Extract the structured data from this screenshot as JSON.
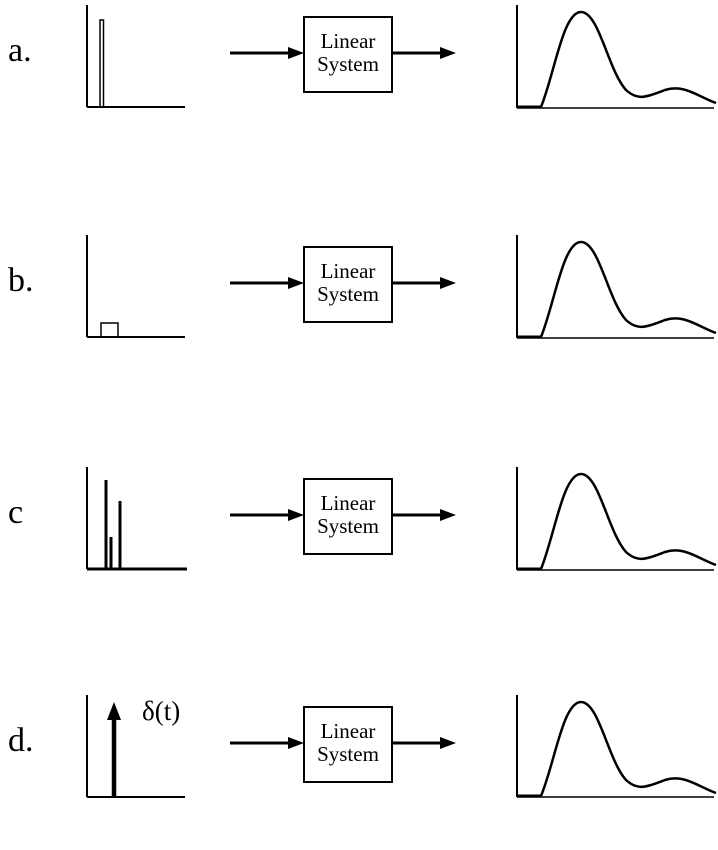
{
  "figure": {
    "rows": [
      {
        "id": "a",
        "label": "a.",
        "input": "narrow-tall-pulse",
        "system": {
          "line1": "Linear",
          "line2": "System"
        }
      },
      {
        "id": "b",
        "label": "b.",
        "input": "wide-short-pulse",
        "system": {
          "line1": "Linear",
          "line2": "System"
        }
      },
      {
        "id": "c",
        "label": "c",
        "input": "three-impulses",
        "system": {
          "line1": "Linear",
          "line2": "System"
        }
      },
      {
        "id": "d",
        "label": "d.",
        "input": "delta-impulse",
        "input_label": "δ(t)",
        "system": {
          "line1": "Linear",
          "line2": "System"
        }
      }
    ],
    "colors": {
      "stroke": "#000000",
      "background": "#ffffff"
    }
  }
}
